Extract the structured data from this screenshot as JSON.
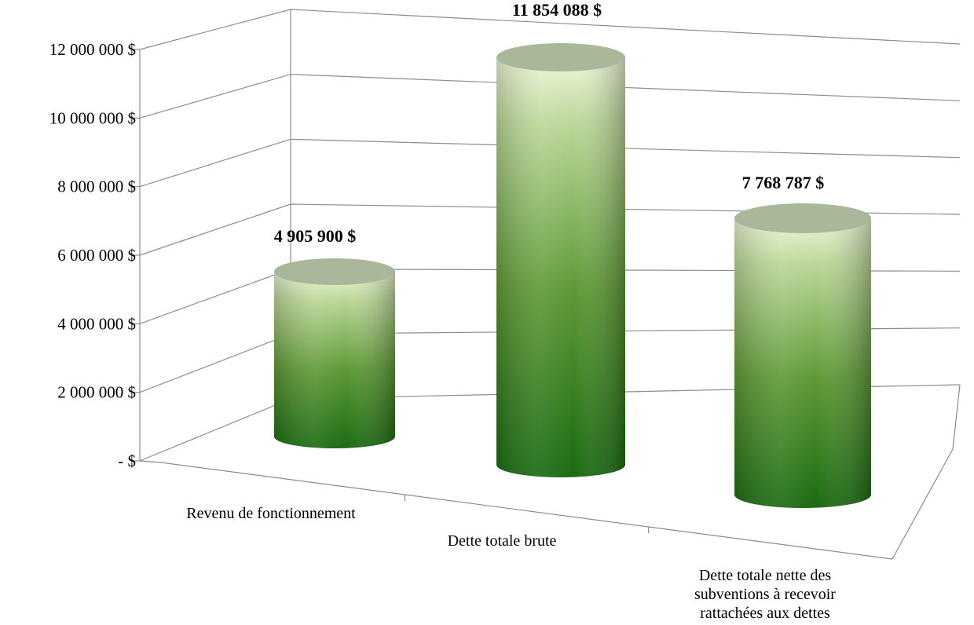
{
  "chart_data": {
    "type": "bar",
    "style": "3d-cylinder",
    "categories": [
      [
        "Revenu de fonctionnement"
      ],
      [
        "Dette totale brute"
      ],
      [
        "Dette totale nette des",
        "subventions à recevoir",
        "rattachées aux dettes"
      ]
    ],
    "values": [
      4905900,
      11854088,
      7768787
    ],
    "data_labels": [
      "4 905 900  $",
      "11 854 088  $",
      "7 768 787  $"
    ],
    "y_ticks": [
      0,
      2000000,
      4000000,
      6000000,
      8000000,
      10000000,
      12000000
    ],
    "y_tick_labels": [
      "-   $",
      "2 000 000  $",
      "4 000 000  $",
      "6 000 000  $",
      "8 000 000  $",
      "10 000 000  $",
      "12 000 000  $"
    ],
    "ylim": [
      0,
      12000000
    ],
    "grid": true,
    "legend": "none",
    "colors": {
      "bar_dark": "#1a6b12",
      "bar_mid": "#5f9a36",
      "bar_light": "#edf7d8",
      "cap": "#a9b89a",
      "grid": "#8c8c8c"
    }
  }
}
